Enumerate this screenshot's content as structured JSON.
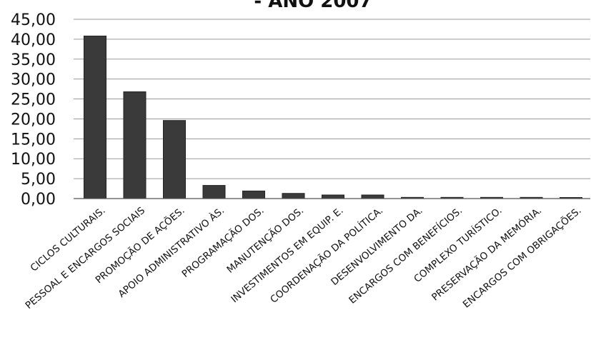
{
  "chart_data": {
    "type": "bar",
    "title": "- ANO 2007",
    "xlabel": "",
    "ylabel": "",
    "ylim": [
      0,
      45
    ],
    "ytick_step": 5,
    "ytick_labels": [
      "0,00",
      "5,00",
      "10,00",
      "15,00",
      "20,00",
      "25,00",
      "30,00",
      "35,00",
      "40,00",
      "45,00"
    ],
    "grid": true,
    "legend": "none",
    "bar_color": "#3a3a3a",
    "categories": [
      "CICLOS CULTURAIS.",
      "PESSOAL E ENCARGOS SOCIAIS",
      "PROMOÇÃO DE AÇÕES.",
      "APOIO ADMINISTRATIVO ÀS.",
      "PROGRAMAÇÃO DOS.",
      "MANUTENÇÃO DOS.",
      "INVESTIMENTOS EM EQUIP. E.",
      "COORDENAÇÃO DA POLÍTICA.",
      "DESENVOLVIMENTO DA.",
      "ENCARGOS COM BENEFÍCIOS.",
      "COMPLEXO TURÍSTICO.",
      "PRESERVAÇÃO DA MEMÓRIA.",
      "ENCARGOS COM OBRIGAÇÕES."
    ],
    "values": [
      40.8,
      26.8,
      19.6,
      3.3,
      1.9,
      1.3,
      0.9,
      0.9,
      0.3,
      0.3,
      0.3,
      0.3,
      0.2
    ]
  }
}
